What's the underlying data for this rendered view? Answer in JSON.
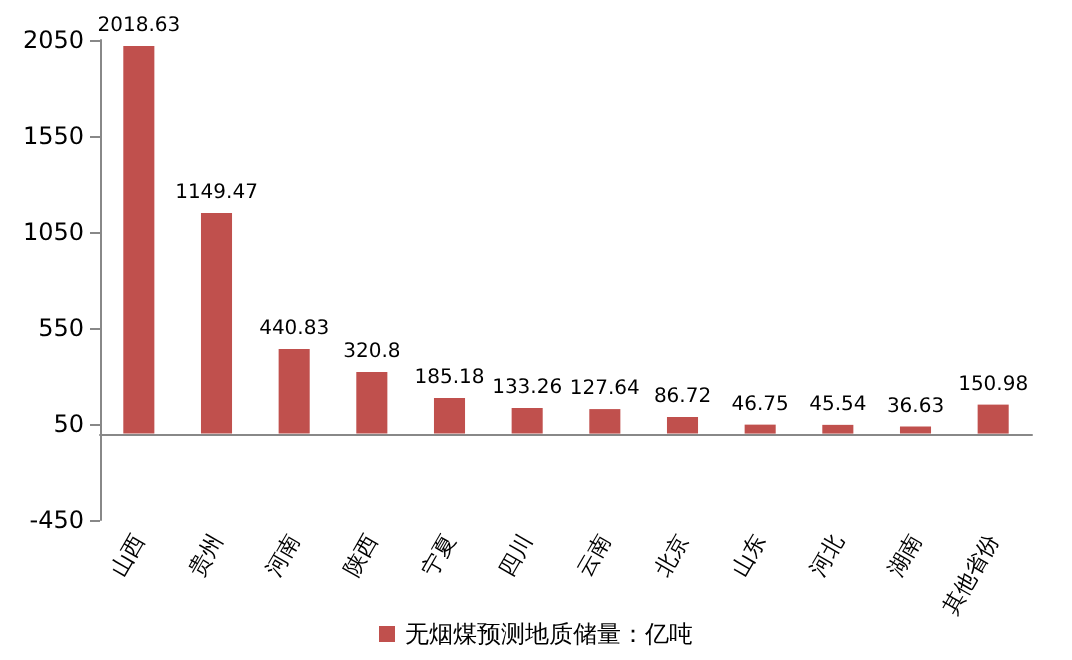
{
  "chart_data": {
    "type": "bar",
    "categories": [
      "山西",
      "贵州",
      "河南",
      "陕西",
      "宁夏",
      "四川",
      "云南",
      "北京",
      "山东",
      "河北",
      "湖南",
      "其他省份"
    ],
    "series": [
      {
        "name": "无烟煤预测地质储量：亿吨",
        "color": "#c0504d",
        "values": [
          2018.63,
          1149.47,
          440.83,
          320.8,
          185.18,
          133.26,
          127.64,
          86.72,
          46.75,
          45.54,
          36.63,
          150.98
        ]
      }
    ],
    "ylim": [
      -450,
      2050
    ],
    "yticks": [
      -450,
      50,
      550,
      1050,
      1550,
      2050
    ],
    "grid": false,
    "legend": "bottom",
    "data_labels": true
  }
}
